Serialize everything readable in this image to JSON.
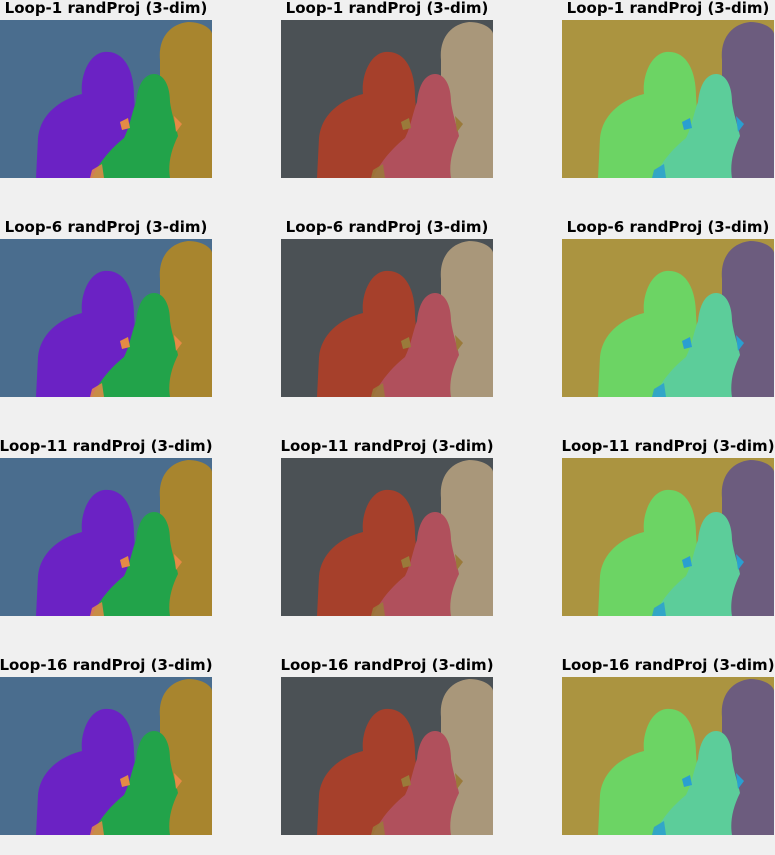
{
  "figure": {
    "rows": [
      {
        "panels": [
          {
            "title": "Loop-1 randProj (3-dim)",
            "palette": "blue-bg"
          },
          {
            "title": "Loop-1 randProj (3-dim)",
            "palette": "gray-bg"
          },
          {
            "title": "Loop-1 randProj (3-dim)",
            "palette": "olive-bg"
          }
        ]
      },
      {
        "panels": [
          {
            "title": "Loop-6 randProj (3-dim)",
            "palette": "blue-bg"
          },
          {
            "title": "Loop-6 randProj (3-dim)",
            "palette": "gray-bg"
          },
          {
            "title": "Loop-6 randProj (3-dim)",
            "palette": "olive-bg"
          }
        ]
      },
      {
        "panels": [
          {
            "title": "Loop-11 randProj (3-dim)",
            "palette": "blue-bg"
          },
          {
            "title": "Loop-11 randProj (3-dim)",
            "palette": "gray-bg"
          },
          {
            "title": "Loop-11 randProj (3-dim)",
            "palette": "olive-bg"
          }
        ]
      },
      {
        "panels": [
          {
            "title": "Loop-16 randProj (3-dim)",
            "palette": "blue-bg"
          },
          {
            "title": "Loop-16 randProj (3-dim)",
            "palette": "gray-bg"
          },
          {
            "title": "Loop-16 randProj (3-dim)",
            "palette": "olive-bg"
          }
        ]
      }
    ]
  },
  "palettes": {
    "blue-bg": {
      "background": "#4a6d8e",
      "left_figure": "#6b22c4",
      "middle_figure": "#22a34a",
      "right_figure": "#a8852e",
      "accent": "#e58a45"
    },
    "gray-bg": {
      "background": "#4b5155",
      "left_figure": "#a6402b",
      "middle_figure": "#b0505c",
      "right_figure": "#a9977a",
      "accent": "#9a7a3a"
    },
    "olive-bg": {
      "background": "#ab9440",
      "left_figure": "#6cd464",
      "middle_figure": "#5ccd9a",
      "right_figure": "#6c5c7e",
      "accent": "#2a9fd0"
    }
  }
}
